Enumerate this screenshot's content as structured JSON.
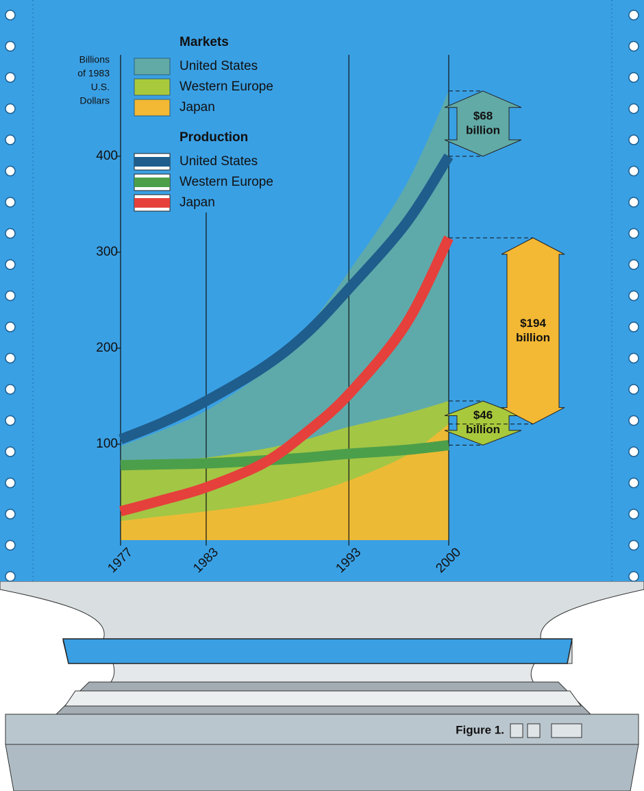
{
  "chart_data": {
    "type": "area",
    "ylabel": [
      "Billions",
      "of 1983",
      "U.S.",
      "Dollars"
    ],
    "x": [
      1977,
      1980,
      1983,
      1987,
      1990,
      1993,
      1997,
      2000
    ],
    "xlim": [
      1977,
      2000
    ],
    "xticks": [
      1977,
      1983,
      1993,
      2000
    ],
    "ylim": [
      0,
      500
    ],
    "yticks": [
      100,
      200,
      300,
      400
    ],
    "grid": true,
    "groups": [
      {
        "title": "Markets",
        "type": "area",
        "series": [
          {
            "name": "United States",
            "color": "#62aaa6",
            "values": [
              98,
              115,
              135,
              175,
              220,
              280,
              370,
              468
            ]
          },
          {
            "name": "Western Europe",
            "color": "#a9c93c",
            "values": [
              82,
              84,
              86,
              95,
              105,
              118,
              132,
              145
            ]
          },
          {
            "name": "Japan",
            "color": "#f3b834",
            "values": [
              20,
              25,
              30,
              38,
              48,
              62,
              88,
              121
            ]
          }
        ]
      },
      {
        "title": "Production",
        "type": "line",
        "series": [
          {
            "name": "United States",
            "color": "#1f5d8c",
            "values": [
              105,
              123,
              145,
              180,
              215,
              262,
              330,
              400
            ]
          },
          {
            "name": "Western Europe",
            "color": "#4c9f4a",
            "values": [
              78,
              79,
              80,
              83,
              86,
              90,
              94,
              99
            ]
          },
          {
            "name": "Japan",
            "color": "#e5403b",
            "values": [
              30,
              42,
              55,
              80,
              112,
              152,
              225,
              315
            ]
          }
        ]
      }
    ],
    "annotations": [
      {
        "value": 68,
        "label": [
          "$68",
          "billion"
        ]
      },
      {
        "value": 46,
        "label": [
          "$46",
          "billion"
        ]
      },
      {
        "value": 194,
        "label": [
          "$194",
          "billion"
        ]
      }
    ]
  },
  "figure_label": "Figure 1."
}
